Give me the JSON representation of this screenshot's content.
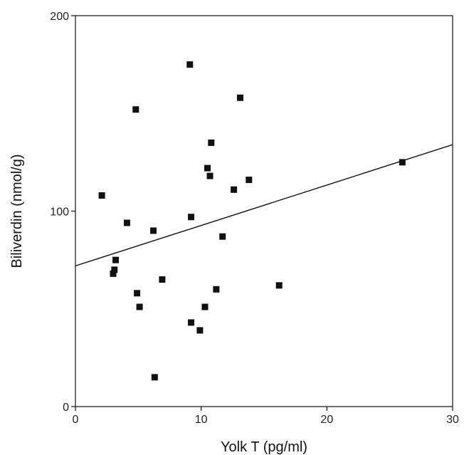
{
  "chart_data": {
    "type": "scatter",
    "title": "",
    "xlabel": "Yolk T (pg/ml)",
    "ylabel": "Biliverdin (nmol/g)",
    "xlim": [
      0,
      30
    ],
    "ylim": [
      0,
      200
    ],
    "xticks": [
      0,
      10,
      20,
      30
    ],
    "yticks": [
      0,
      100,
      200
    ],
    "xtick_labels": [
      "0",
      "10",
      "20",
      "30"
    ],
    "ytick_labels": [
      "0",
      "100",
      "200"
    ],
    "grid": false,
    "legend": "none",
    "marker": "square",
    "colors": {
      "marker": "#111111",
      "line": "#111111",
      "axis": "#111111"
    },
    "points": [
      {
        "x": 2.1,
        "y": 108
      },
      {
        "x": 3.0,
        "y": 68
      },
      {
        "x": 3.1,
        "y": 70
      },
      {
        "x": 3.2,
        "y": 75
      },
      {
        "x": 4.1,
        "y": 94
      },
      {
        "x": 4.8,
        "y": 152
      },
      {
        "x": 4.9,
        "y": 58
      },
      {
        "x": 5.1,
        "y": 51
      },
      {
        "x": 6.2,
        "y": 90
      },
      {
        "x": 6.3,
        "y": 15
      },
      {
        "x": 6.9,
        "y": 65
      },
      {
        "x": 9.1,
        "y": 175
      },
      {
        "x": 9.2,
        "y": 97
      },
      {
        "x": 9.2,
        "y": 43
      },
      {
        "x": 9.9,
        "y": 39
      },
      {
        "x": 10.3,
        "y": 51
      },
      {
        "x": 10.5,
        "y": 122
      },
      {
        "x": 10.7,
        "y": 118
      },
      {
        "x": 10.8,
        "y": 135
      },
      {
        "x": 11.2,
        "y": 60
      },
      {
        "x": 11.7,
        "y": 87
      },
      {
        "x": 12.6,
        "y": 111
      },
      {
        "x": 13.1,
        "y": 158
      },
      {
        "x": 13.8,
        "y": 116
      },
      {
        "x": 16.2,
        "y": 62
      },
      {
        "x": 26.0,
        "y": 125
      }
    ],
    "trendline": {
      "type": "linear",
      "y_at_xmin": 72,
      "y_at_xmax": 134
    }
  }
}
